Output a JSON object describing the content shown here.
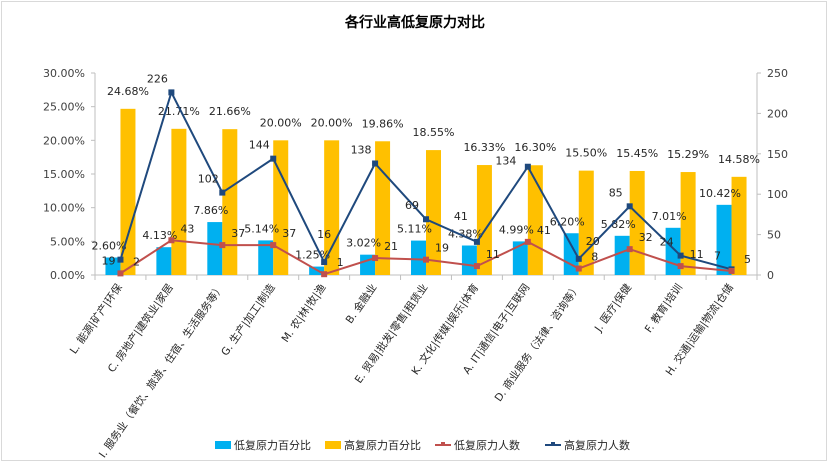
{
  "chart_data": {
    "type": "bar+line",
    "title": "各行业高低复原力对比",
    "categories": [
      "L. 能源|矿产|环保",
      "C. 房地产|建筑业|家居",
      "I. 服务业（餐饮、旅游、住宿、生活服务等）",
      "G. 生产|加工|制造",
      "M. 农|林|牧|渔",
      "B. 金融业",
      "E. 贸易|批发|零售|租赁业",
      "K. 文化|传媒|娱乐|体育",
      "A. IT|通信|电子|互联网",
      "D. 商业服务（法律、咨询等）",
      "J. 医疗|保健",
      "F. 教育|培训",
      "H. 交通|运输|物流|仓储"
    ],
    "series": [
      {
        "name": "低复原力百分比",
        "type": "bar",
        "axis": "left",
        "color": "#00b0f0",
        "values": [
          2.6,
          4.13,
          7.86,
          5.14,
          1.25,
          3.02,
          5.11,
          4.38,
          4.99,
          6.2,
          5.82,
          7.01,
          10.42
        ],
        "labels": [
          "2.60%",
          "4.13%",
          "7.86%",
          "5.14%",
          "1.25%",
          "3.02%",
          "5.11%",
          "4.38%",
          "4.99%",
          "6.20%",
          "5.82%",
          "7.01%",
          "10.42%"
        ]
      },
      {
        "name": "高复原力百分比",
        "type": "bar",
        "axis": "left",
        "color": "#ffc000",
        "values": [
          24.68,
          21.71,
          21.66,
          20.0,
          20.0,
          19.86,
          18.55,
          16.33,
          16.3,
          15.5,
          15.45,
          15.29,
          14.58
        ],
        "labels": [
          "24.68%",
          "21.71%",
          "21.66%",
          "20.00%",
          "20.00%",
          "19.86%",
          "18.55%",
          "16.33%",
          "16.30%",
          "15.50%",
          "15.45%",
          "15.29%",
          "14.58%"
        ]
      },
      {
        "name": "低复原力人数",
        "type": "line",
        "axis": "right",
        "color": "#c0504d",
        "values": [
          2,
          43,
          37,
          37,
          1,
          21,
          19,
          11,
          41,
          8,
          32,
          11,
          5
        ]
      },
      {
        "name": "高复原力人数",
        "type": "line",
        "axis": "right",
        "color": "#1f497d",
        "values": [
          19,
          226,
          102,
          144,
          16,
          138,
          69,
          41,
          134,
          20,
          85,
          24,
          7
        ]
      }
    ],
    "y_left": {
      "ylim": [
        0,
        30
      ],
      "ticks": [
        "0.00%",
        "5.00%",
        "10.00%",
        "15.00%",
        "20.00%",
        "25.00%",
        "30.00%"
      ]
    },
    "y_right": {
      "ylim": [
        0,
        250
      ],
      "ticks": [
        "0",
        "50",
        "100",
        "150",
        "200",
        "250"
      ]
    },
    "legend_position": "bottom",
    "grid": false
  }
}
